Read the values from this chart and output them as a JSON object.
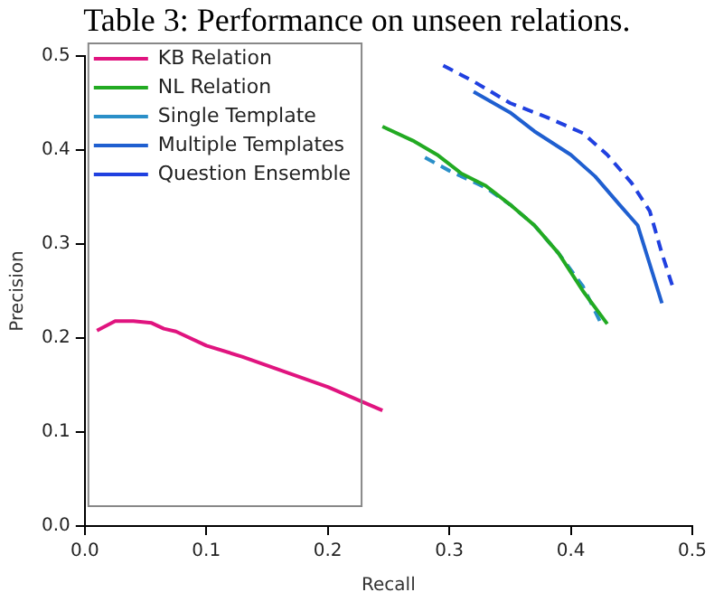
{
  "chart_data": {
    "type": "line",
    "annotations": [
      "Table 3: Performance on unseen relations."
    ],
    "xlabel": "Recall",
    "ylabel": "Precision",
    "xlim": [
      0,
      0.5
    ],
    "xticks": [
      {
        "value": 0,
        "label": "0.0"
      },
      0.1,
      0.2,
      0.3,
      0.4,
      0.5
    ],
    "ylim": [
      0,
      0.5
    ],
    "yticks": [
      {
        "value": 0,
        "label": "0.0"
      },
      0.1,
      0.2,
      0.3,
      0.4,
      0.5
    ],
    "grid": false,
    "legend": "top left",
    "marker": "none",
    "series": [
      {
        "name": "KB Relation",
        "color": "#e0147f",
        "line_style": "solid",
        "x": [
          0.01,
          0.025,
          0.04,
          0.055,
          0.065,
          0.075,
          0.1,
          0.13,
          0.2,
          0.245
        ],
        "values": [
          0.208,
          0.218,
          0.218,
          0.216,
          0.21,
          0.207,
          0.192,
          0.18,
          0.148,
          0.123
        ]
      },
      {
        "name": "NL Relation",
        "color": "#22aa22",
        "line_style": "solid",
        "x": [
          0.245,
          0.27,
          0.29,
          0.31,
          0.33,
          0.35,
          0.37,
          0.39,
          0.41,
          0.43
        ],
        "values": [
          0.425,
          0.41,
          0.395,
          0.375,
          0.362,
          0.342,
          0.32,
          0.29,
          0.25,
          0.215
        ]
      },
      {
        "name": "Single Template",
        "color": "#2a8fc8",
        "line_style": "dashed",
        "x": [
          0.28,
          0.3,
          0.33,
          0.35,
          0.37,
          0.39,
          0.41,
          0.425
        ],
        "values": [
          0.392,
          0.378,
          0.36,
          0.342,
          0.32,
          0.29,
          0.255,
          0.215
        ]
      },
      {
        "name": "Multiple Templates",
        "color": "#1f5fd0",
        "line_style": "solid",
        "x": [
          0.32,
          0.35,
          0.37,
          0.4,
          0.42,
          0.44,
          0.455,
          0.475
        ],
        "values": [
          0.462,
          0.44,
          0.42,
          0.395,
          0.372,
          0.342,
          0.32,
          0.237
        ]
      },
      {
        "name": "Question Ensemble",
        "color": "#2040e0",
        "line_style": "dashed",
        "x": [
          0.295,
          0.32,
          0.35,
          0.38,
          0.41,
          0.43,
          0.45,
          0.465,
          0.475,
          0.485
        ],
        "values": [
          0.49,
          0.473,
          0.45,
          0.435,
          0.418,
          0.395,
          0.365,
          0.335,
          0.29,
          0.25
        ]
      }
    ]
  }
}
